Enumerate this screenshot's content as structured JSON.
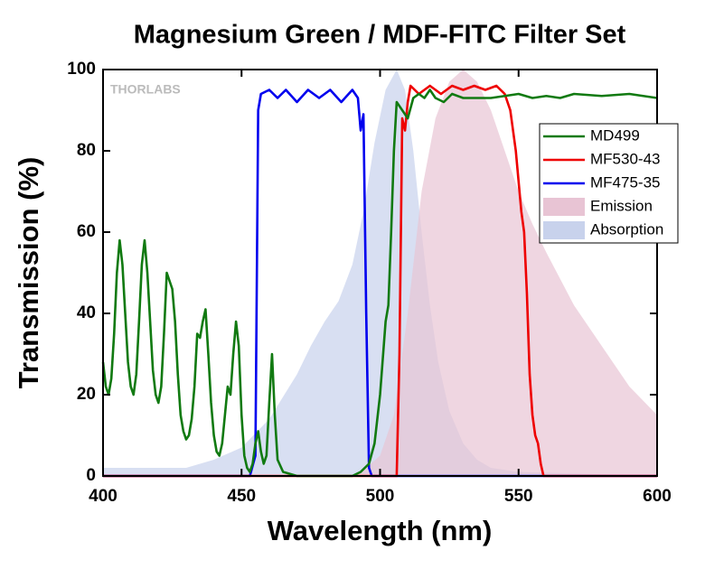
{
  "chart_data": {
    "type": "line",
    "title": "Magnesium Green / MDF-FITC Filter Set",
    "xlabel": "Wavelength (nm)",
    "ylabel": "Transmission (%)",
    "watermark": "THORLABS",
    "xlim": [
      400,
      600
    ],
    "ylim": [
      0,
      100
    ],
    "xticks": [
      400,
      450,
      500,
      550,
      600
    ],
    "yticks": [
      0,
      20,
      40,
      60,
      80,
      100
    ],
    "legend": "upper right",
    "series": [
      {
        "name": "Absorption",
        "kind": "area",
        "color": "#c8d2ec",
        "x": [
          400,
          430,
          440,
          450,
          460,
          470,
          475,
          480,
          485,
          490,
          494,
          498,
          502,
          506,
          509,
          512,
          515,
          518,
          521,
          525,
          530,
          535,
          540,
          550,
          600
        ],
        "values": [
          2,
          2,
          4,
          7,
          14,
          25,
          32,
          38,
          43,
          52,
          65,
          82,
          95,
          100,
          95,
          80,
          60,
          42,
          28,
          16,
          8,
          4,
          2,
          1,
          0
        ]
      },
      {
        "name": "Emission",
        "kind": "area",
        "color": "#e8c4d4",
        "x": [
          400,
          490,
          495,
          500,
          505,
          510,
          515,
          520,
          525,
          530,
          535,
          540,
          545,
          550,
          555,
          560,
          570,
          580,
          590,
          600
        ],
        "values": [
          0,
          0,
          2,
          5,
          15,
          40,
          70,
          88,
          97,
          100,
          97,
          90,
          80,
          70,
          62,
          55,
          42,
          32,
          22,
          15
        ]
      },
      {
        "name": "MF475-35",
        "kind": "line",
        "color": "#0000ee",
        "x": [
          400,
          453,
          455,
          456,
          457,
          460,
          463,
          466,
          470,
          474,
          478,
          482,
          486,
          490,
          492,
          493,
          494,
          495,
          496,
          497,
          600
        ],
        "values": [
          0,
          0,
          5,
          90,
          94,
          95,
          93,
          95,
          92,
          95,
          93,
          95,
          92,
          95,
          93,
          85,
          89,
          40,
          2,
          0,
          0
        ]
      },
      {
        "name": "MF530-43",
        "kind": "line",
        "color": "#ee0000",
        "x": [
          400,
          506,
          507,
          508,
          509,
          510,
          511,
          514,
          518,
          522,
          526,
          530,
          534,
          538,
          542,
          545,
          547,
          549,
          551,
          552,
          553,
          554,
          555,
          556,
          557,
          558,
          559,
          600
        ],
        "values": [
          0,
          0,
          30,
          88,
          85,
          92,
          96,
          94,
          96,
          94,
          96,
          95,
          96,
          95,
          96,
          94,
          90,
          80,
          65,
          60,
          45,
          25,
          15,
          10,
          8,
          3,
          0,
          0
        ]
      },
      {
        "name": "MD499",
        "kind": "line",
        "color": "#117a11",
        "x": [
          400,
          401,
          402,
          403,
          404,
          405,
          406,
          407,
          408,
          409,
          410,
          411,
          412,
          413,
          414,
          415,
          416,
          417,
          418,
          419,
          420,
          421,
          422,
          423,
          424,
          425,
          426,
          427,
          428,
          429,
          430,
          431,
          432,
          433,
          434,
          435,
          436,
          437,
          438,
          439,
          440,
          441,
          442,
          443,
          444,
          445,
          446,
          447,
          448,
          449,
          450,
          451,
          452,
          453,
          454,
          455,
          456,
          457,
          458,
          459,
          460,
          461,
          462,
          463,
          465,
          470,
          490,
          493,
          496,
          498,
          500,
          502,
          503,
          504,
          505,
          506,
          508,
          510,
          512,
          514,
          516,
          518,
          520,
          523,
          526,
          530,
          535,
          540,
          545,
          550,
          555,
          560,
          565,
          570,
          580,
          590,
          600
        ],
        "values": [
          28,
          22,
          20,
          24,
          35,
          50,
          58,
          52,
          40,
          28,
          22,
          20,
          25,
          38,
          52,
          58,
          50,
          38,
          26,
          20,
          18,
          22,
          35,
          50,
          48,
          46,
          38,
          25,
          15,
          11,
          9,
          10,
          14,
          22,
          35,
          34,
          38,
          41,
          30,
          18,
          10,
          6,
          5,
          8,
          15,
          22,
          20,
          30,
          38,
          32,
          15,
          5,
          2,
          1,
          3,
          8,
          11,
          6,
          3,
          5,
          18,
          30,
          15,
          4,
          1,
          0,
          0,
          1,
          3,
          8,
          20,
          38,
          42,
          60,
          80,
          92,
          90,
          88,
          93,
          94,
          93,
          95,
          93,
          92,
          94,
          93,
          93,
          93,
          93.5,
          94,
          93,
          93.5,
          93,
          94,
          93.5,
          94,
          93
        ]
      }
    ]
  }
}
